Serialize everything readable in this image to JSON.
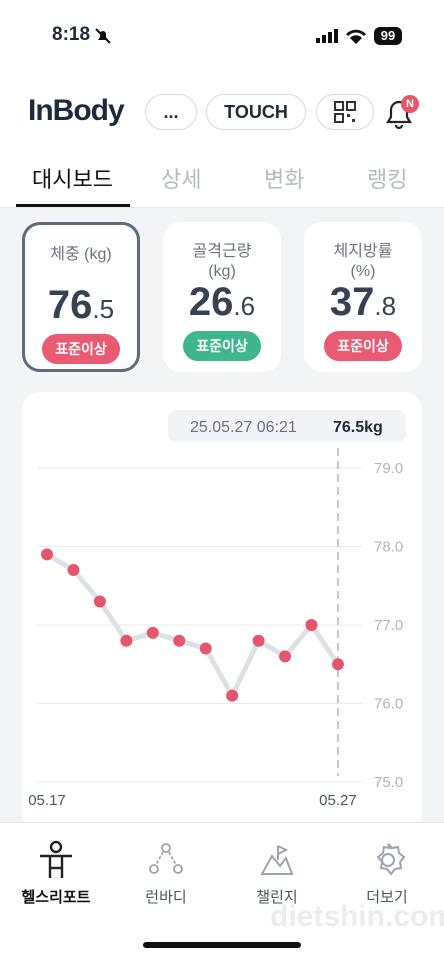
{
  "status_bar": {
    "time": "8:18",
    "battery": "99"
  },
  "header": {
    "logo": "InBody",
    "buttons": [
      "...",
      "TOUCH"
    ],
    "badge": "N"
  },
  "tabs": [
    "대시보드",
    "상세",
    "변화",
    "랭킹"
  ],
  "cards": [
    {
      "label": "체중 (kg)",
      "value_int": "76",
      "value_dec": ".5",
      "status": "표준이상"
    },
    {
      "label": "골격근량\n(kg)",
      "value_int": "26",
      "value_dec": ".6",
      "status": "표준이상"
    },
    {
      "label": "체지방률\n(%)",
      "value_int": "37",
      "value_dec": ".8",
      "status": "표준이상"
    }
  ],
  "chart": {
    "type": "line",
    "categories": [
      "05.17",
      null,
      null,
      null,
      null,
      null,
      null,
      null,
      null,
      null,
      null,
      "05.27"
    ],
    "values": [
      77.9,
      77.7,
      77.3,
      76.8,
      76.9,
      76.8,
      76.7,
      76.1,
      76.8,
      76.6,
      77.0,
      76.5
    ],
    "color": "#e5566e",
    "line_color": "#dde0e5",
    "ylim": [
      75,
      79
    ],
    "yticks": [
      {
        "value": 79,
        "label": "79.0"
      },
      {
        "value": 78,
        "label": "78.0"
      },
      {
        "value": 77,
        "label": "77.0"
      },
      {
        "value": 76,
        "label": "76.0"
      },
      {
        "value": 75,
        "label": "75.0"
      }
    ],
    "tooltip": {
      "date": "25.05.27 06:21",
      "value": "76.5kg"
    }
  },
  "bottom_nav": [
    "헬스리포트",
    "런바디",
    "챌린지",
    "더보기"
  ],
  "watermark": "dietshin.com"
}
